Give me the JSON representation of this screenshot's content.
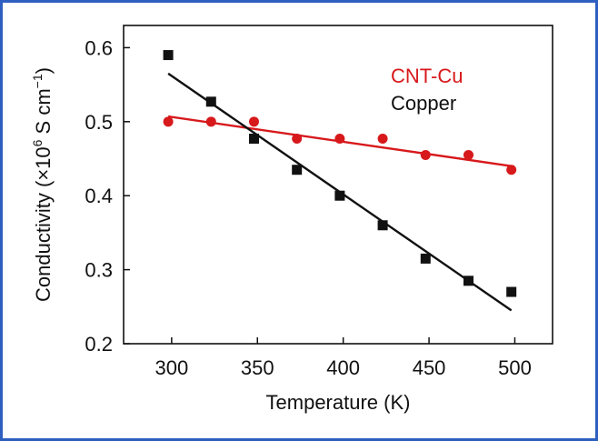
{
  "chart_data": {
    "type": "scatter",
    "xlabel": "Temperature (K)",
    "ylabel_main": "Conductivity (×10",
    "ylabel_sup": "6",
    "ylabel_unit": " S cm",
    "ylabel_unit_sup": "−1",
    "ylabel_close": ")",
    "xlim": [
      272,
      522
    ],
    "ylim": [
      0.2,
      0.63
    ],
    "x_ticks": [
      300,
      350,
      400,
      450,
      500
    ],
    "x_tick_labels": [
      "300",
      "350",
      "400",
      "450",
      "500"
    ],
    "y_ticks": [
      0.2,
      0.3,
      0.4,
      0.5,
      0.6
    ],
    "y_tick_labels": [
      "0.2",
      "0.3",
      "0.4",
      "0.5",
      "0.6"
    ],
    "legend_position": "top-right",
    "series": [
      {
        "name": "CNT-Cu",
        "color": "#d7191c",
        "marker": "circle",
        "x": [
          298,
          323,
          348,
          373,
          398,
          423,
          448,
          473,
          498
        ],
        "y": [
          0.5,
          0.5,
          0.5,
          0.477,
          0.477,
          0.477,
          0.455,
          0.455,
          0.435
        ],
        "fit": {
          "x": [
            298,
            498
          ],
          "y": [
            0.507,
            0.44
          ]
        }
      },
      {
        "name": "Copper",
        "color": "#111111",
        "marker": "square",
        "x": [
          298,
          323,
          348,
          373,
          398,
          423,
          448,
          473,
          498
        ],
        "y": [
          0.59,
          0.527,
          0.477,
          0.435,
          0.4,
          0.36,
          0.315,
          0.285,
          0.27
        ],
        "fit": {
          "x": [
            298,
            498
          ],
          "y": [
            0.565,
            0.245
          ]
        }
      }
    ]
  }
}
